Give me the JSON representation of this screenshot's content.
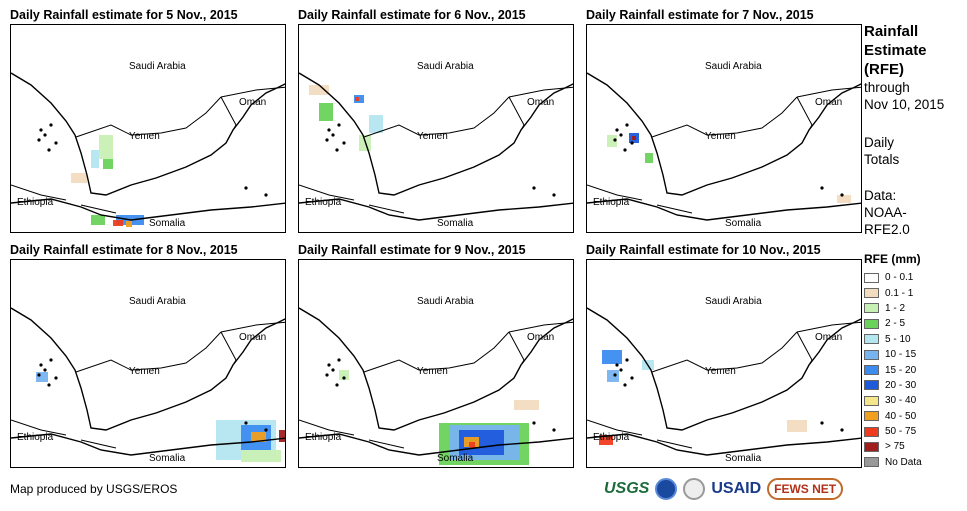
{
  "panels": [
    {
      "title": "Daily Rainfall estimate for 5 Nov., 2015",
      "date": "5 Nov."
    },
    {
      "title": "Daily Rainfall estimate for 6 Nov., 2015",
      "date": "6 Nov."
    },
    {
      "title": "Daily Rainfall estimate for 7 Nov., 2015",
      "date": "7 Nov."
    },
    {
      "title": "Daily Rainfall estimate for 8 Nov., 2015",
      "date": "8 Nov."
    },
    {
      "title": "Daily Rainfall estimate for 9 Nov., 2015",
      "date": "9 Nov."
    },
    {
      "title": "Daily Rainfall estimate for 10 Nov., 2015",
      "date": "10 Nov."
    }
  ],
  "map_labels": {
    "saudi_arabia": "Saudi Arabia",
    "oman": "Oman",
    "yemen": "Yemen",
    "ethiopia": "Ethiopia",
    "somalia": "Somalia"
  },
  "legend": {
    "title_line1": "Rainfall",
    "title_line2": "Estimate",
    "title_line3": "(RFE)",
    "through": "through",
    "through_date": "Nov 10, 2015",
    "daily": "Daily",
    "totals": "Totals",
    "data_label": "Data:",
    "data_source1": "NOAA-",
    "data_source2": "RFE2.0",
    "rfe_title": "RFE (mm)",
    "classes": [
      {
        "label": "0 - 0.1",
        "color": "#ffffff"
      },
      {
        "label": "0.1 - 1",
        "color": "#f2dcc0"
      },
      {
        "label": "1 - 2",
        "color": "#c8f0b4"
      },
      {
        "label": "2 - 5",
        "color": "#6ad25a"
      },
      {
        "label": "5 - 10",
        "color": "#b4e6f0"
      },
      {
        "label": "10 - 15",
        "color": "#78b4f0"
      },
      {
        "label": "15 - 20",
        "color": "#3c8cf0"
      },
      {
        "label": "20 - 30",
        "color": "#1e5adc"
      },
      {
        "label": "30 - 40",
        "color": "#f5e68c"
      },
      {
        "label": "40 - 50",
        "color": "#f0a01e"
      },
      {
        "label": "50 - 75",
        "color": "#f03c1e"
      },
      {
        "label": "> 75",
        "color": "#a01e1e"
      },
      {
        "label": "No Data",
        "color": "#999999"
      }
    ]
  },
  "footer": {
    "credit": "Map produced by USGS/EROS",
    "logos": [
      "USGS",
      "NOAA",
      "USAID",
      "FEWS NET"
    ]
  }
}
